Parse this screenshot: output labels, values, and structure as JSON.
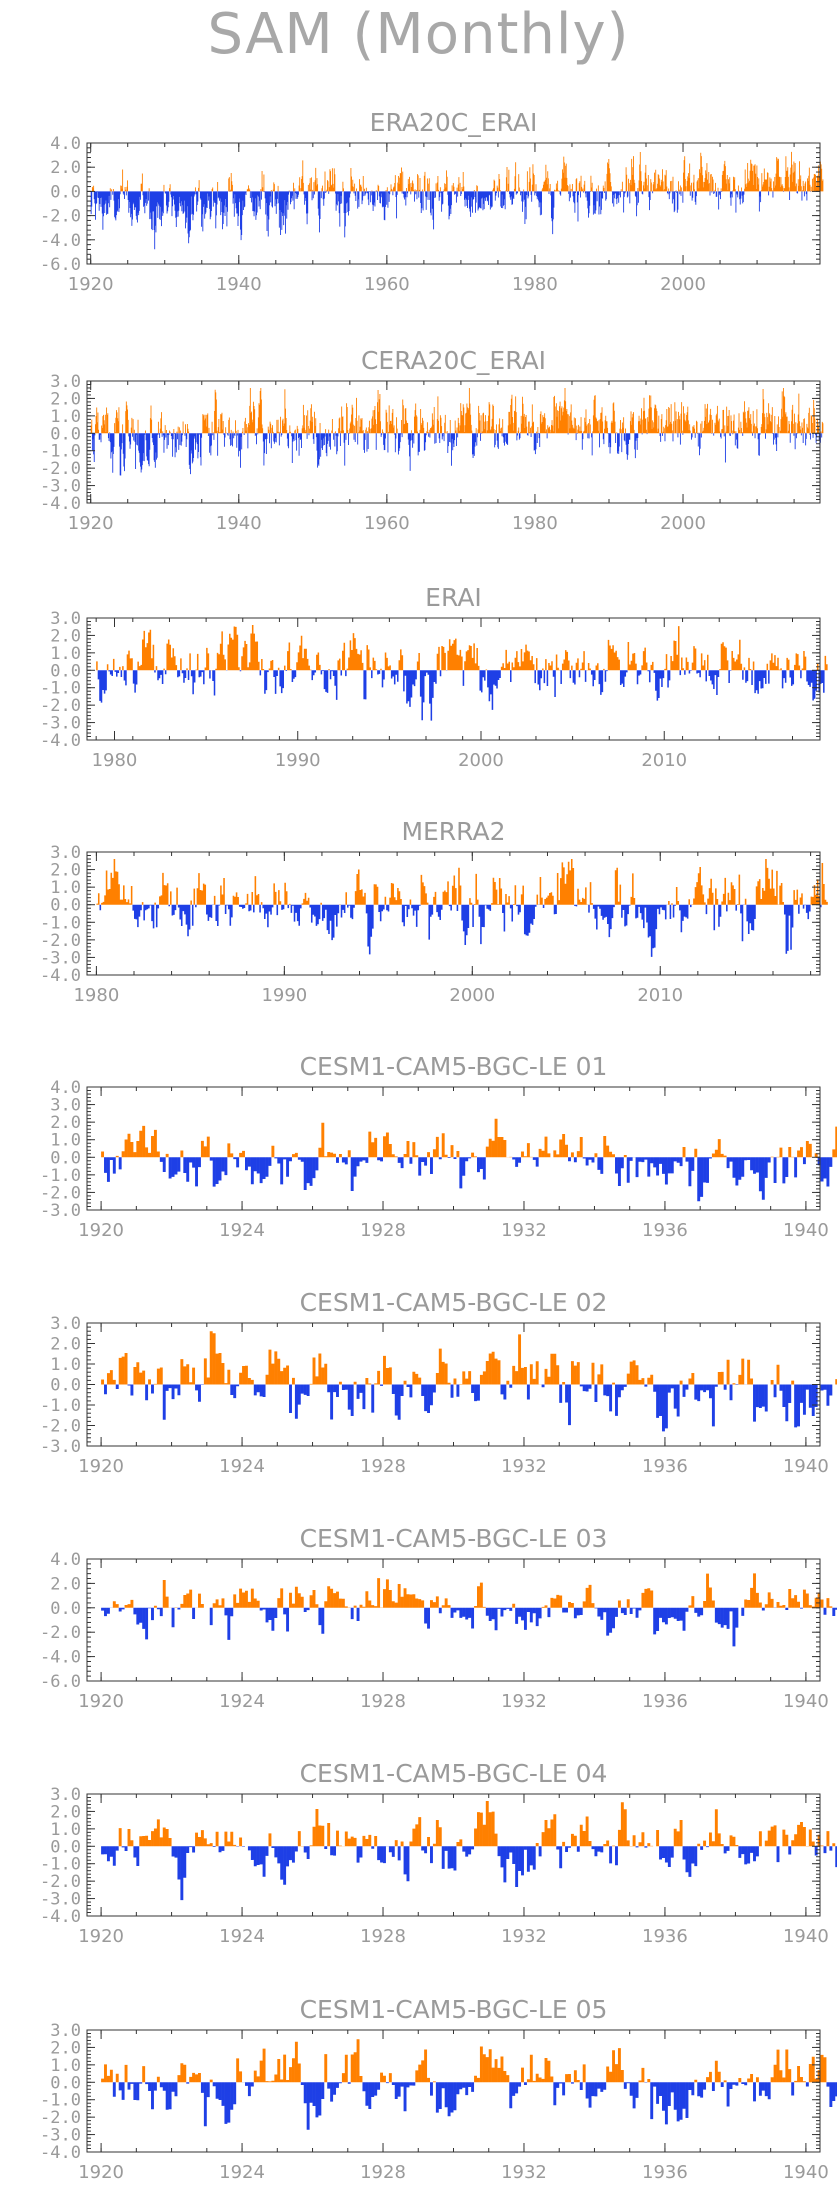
{
  "title": "SAM (Monthly)",
  "colors": {
    "positive": "#ff8000",
    "negative": "#1e3fe6",
    "axis": "#333333",
    "text": "#9a9a9a"
  },
  "chart_data": [
    {
      "type": "area",
      "title": "ERA20C_ERAI",
      "xlim": [
        1919.5,
        2018.5
      ],
      "ylim": [
        -6.0,
        4.0
      ],
      "yticks": [
        "4.0",
        "2.0",
        "0.0",
        "-2.0",
        "-4.0",
        "-6.0"
      ],
      "xticks": [
        1920,
        1940,
        1960,
        1980,
        2000
      ],
      "series_mean_start": -1.3,
      "series_mean_end": 0.9,
      "amplitude": 1.1
    },
    {
      "type": "area",
      "title": "CERA20C_ERAI",
      "xlim": [
        1919.5,
        2018.5
      ],
      "ylim": [
        -4.0,
        3.0
      ],
      "yticks": [
        "3.0",
        "2.0",
        "1.0",
        "0.0",
        "-1.0",
        "-2.0",
        "-3.0",
        "-4.0"
      ],
      "xticks": [
        1920,
        1940,
        1960,
        1980,
        2000
      ],
      "series_mean_start": -0.3,
      "series_mean_end": 0.8,
      "amplitude": 0.9
    },
    {
      "type": "area",
      "title": "ERAI",
      "xlim": [
        1978.5,
        2018.5
      ],
      "ylim": [
        -4.0,
        3.0
      ],
      "yticks": [
        "3.0",
        "2.0",
        "1.0",
        "0.0",
        "-1.0",
        "-2.0",
        "-3.0",
        "-4.0"
      ],
      "xticks": [
        1980,
        1990,
        2000,
        2010
      ],
      "series_mean_start": -0.1,
      "series_mean_end": 0.1,
      "amplitude": 1.0
    },
    {
      "type": "area",
      "title": "MERRA2",
      "xlim": [
        1979.5,
        2018.5
      ],
      "ylim": [
        -4.0,
        3.0
      ],
      "yticks": [
        "3.0",
        "2.0",
        "1.0",
        "0.0",
        "-1.0",
        "-2.0",
        "-3.0",
        "-4.0"
      ],
      "xticks": [
        1980,
        1990,
        2000,
        2010
      ],
      "series_mean_start": -0.1,
      "series_mean_end": 0.1,
      "amplitude": 1.0
    },
    {
      "type": "area",
      "title": "CESM1-CAM5-BGC-LE 01",
      "xlim": [
        1919.6,
        1940.4
      ],
      "ylim": [
        -3.0,
        4.0
      ],
      "yticks": [
        "4.0",
        "3.0",
        "2.0",
        "1.0",
        "0.0",
        "-1.0",
        "-2.0",
        "-3.0"
      ],
      "xticks": [
        1920,
        1924,
        1928,
        1932,
        1936,
        1940
      ],
      "series_mean_start": 0.0,
      "series_mean_end": 0.0,
      "amplitude": 1.0
    },
    {
      "type": "area",
      "title": "CESM1-CAM5-BGC-LE 02",
      "xlim": [
        1919.6,
        1940.4
      ],
      "ylim": [
        -3.0,
        3.0
      ],
      "yticks": [
        "3.0",
        "2.0",
        "1.0",
        "0.0",
        "-1.0",
        "-2.0",
        "-3.0"
      ],
      "xticks": [
        1920,
        1924,
        1928,
        1932,
        1936,
        1940
      ],
      "series_mean_start": 0.0,
      "series_mean_end": 0.0,
      "amplitude": 1.0
    },
    {
      "type": "area",
      "title": "CESM1-CAM5-BGC-LE 03",
      "xlim": [
        1919.6,
        1940.4
      ],
      "ylim": [
        -6.0,
        4.0
      ],
      "yticks": [
        "4.0",
        "2.0",
        "0.0",
        "-2.0",
        "-4.0",
        "-6.0"
      ],
      "xticks": [
        1920,
        1924,
        1928,
        1932,
        1936,
        1940
      ],
      "series_mean_start": 0.0,
      "series_mean_end": 0.0,
      "amplitude": 1.2
    },
    {
      "type": "area",
      "title": "CESM1-CAM5-BGC-LE 04",
      "xlim": [
        1919.6,
        1940.4
      ],
      "ylim": [
        -4.0,
        3.0
      ],
      "yticks": [
        "3.0",
        "2.0",
        "1.0",
        "0.0",
        "-1.0",
        "-2.0",
        "-3.0",
        "-4.0"
      ],
      "xticks": [
        1920,
        1924,
        1928,
        1932,
        1936,
        1940
      ],
      "series_mean_start": 0.0,
      "series_mean_end": 0.0,
      "amplitude": 1.0
    },
    {
      "type": "area",
      "title": "CESM1-CAM5-BGC-LE 05",
      "xlim": [
        1919.6,
        1940.4
      ],
      "ylim": [
        -4.0,
        3.0
      ],
      "yticks": [
        "3.0",
        "2.0",
        "1.0",
        "0.0",
        "-1.0",
        "-2.0",
        "-3.0",
        "-4.0"
      ],
      "xticks": [
        1920,
        1924,
        1928,
        1932,
        1936,
        1940
      ],
      "series_mean_start": 0.0,
      "series_mean_end": 0.0,
      "amplitude": 1.0
    }
  ]
}
